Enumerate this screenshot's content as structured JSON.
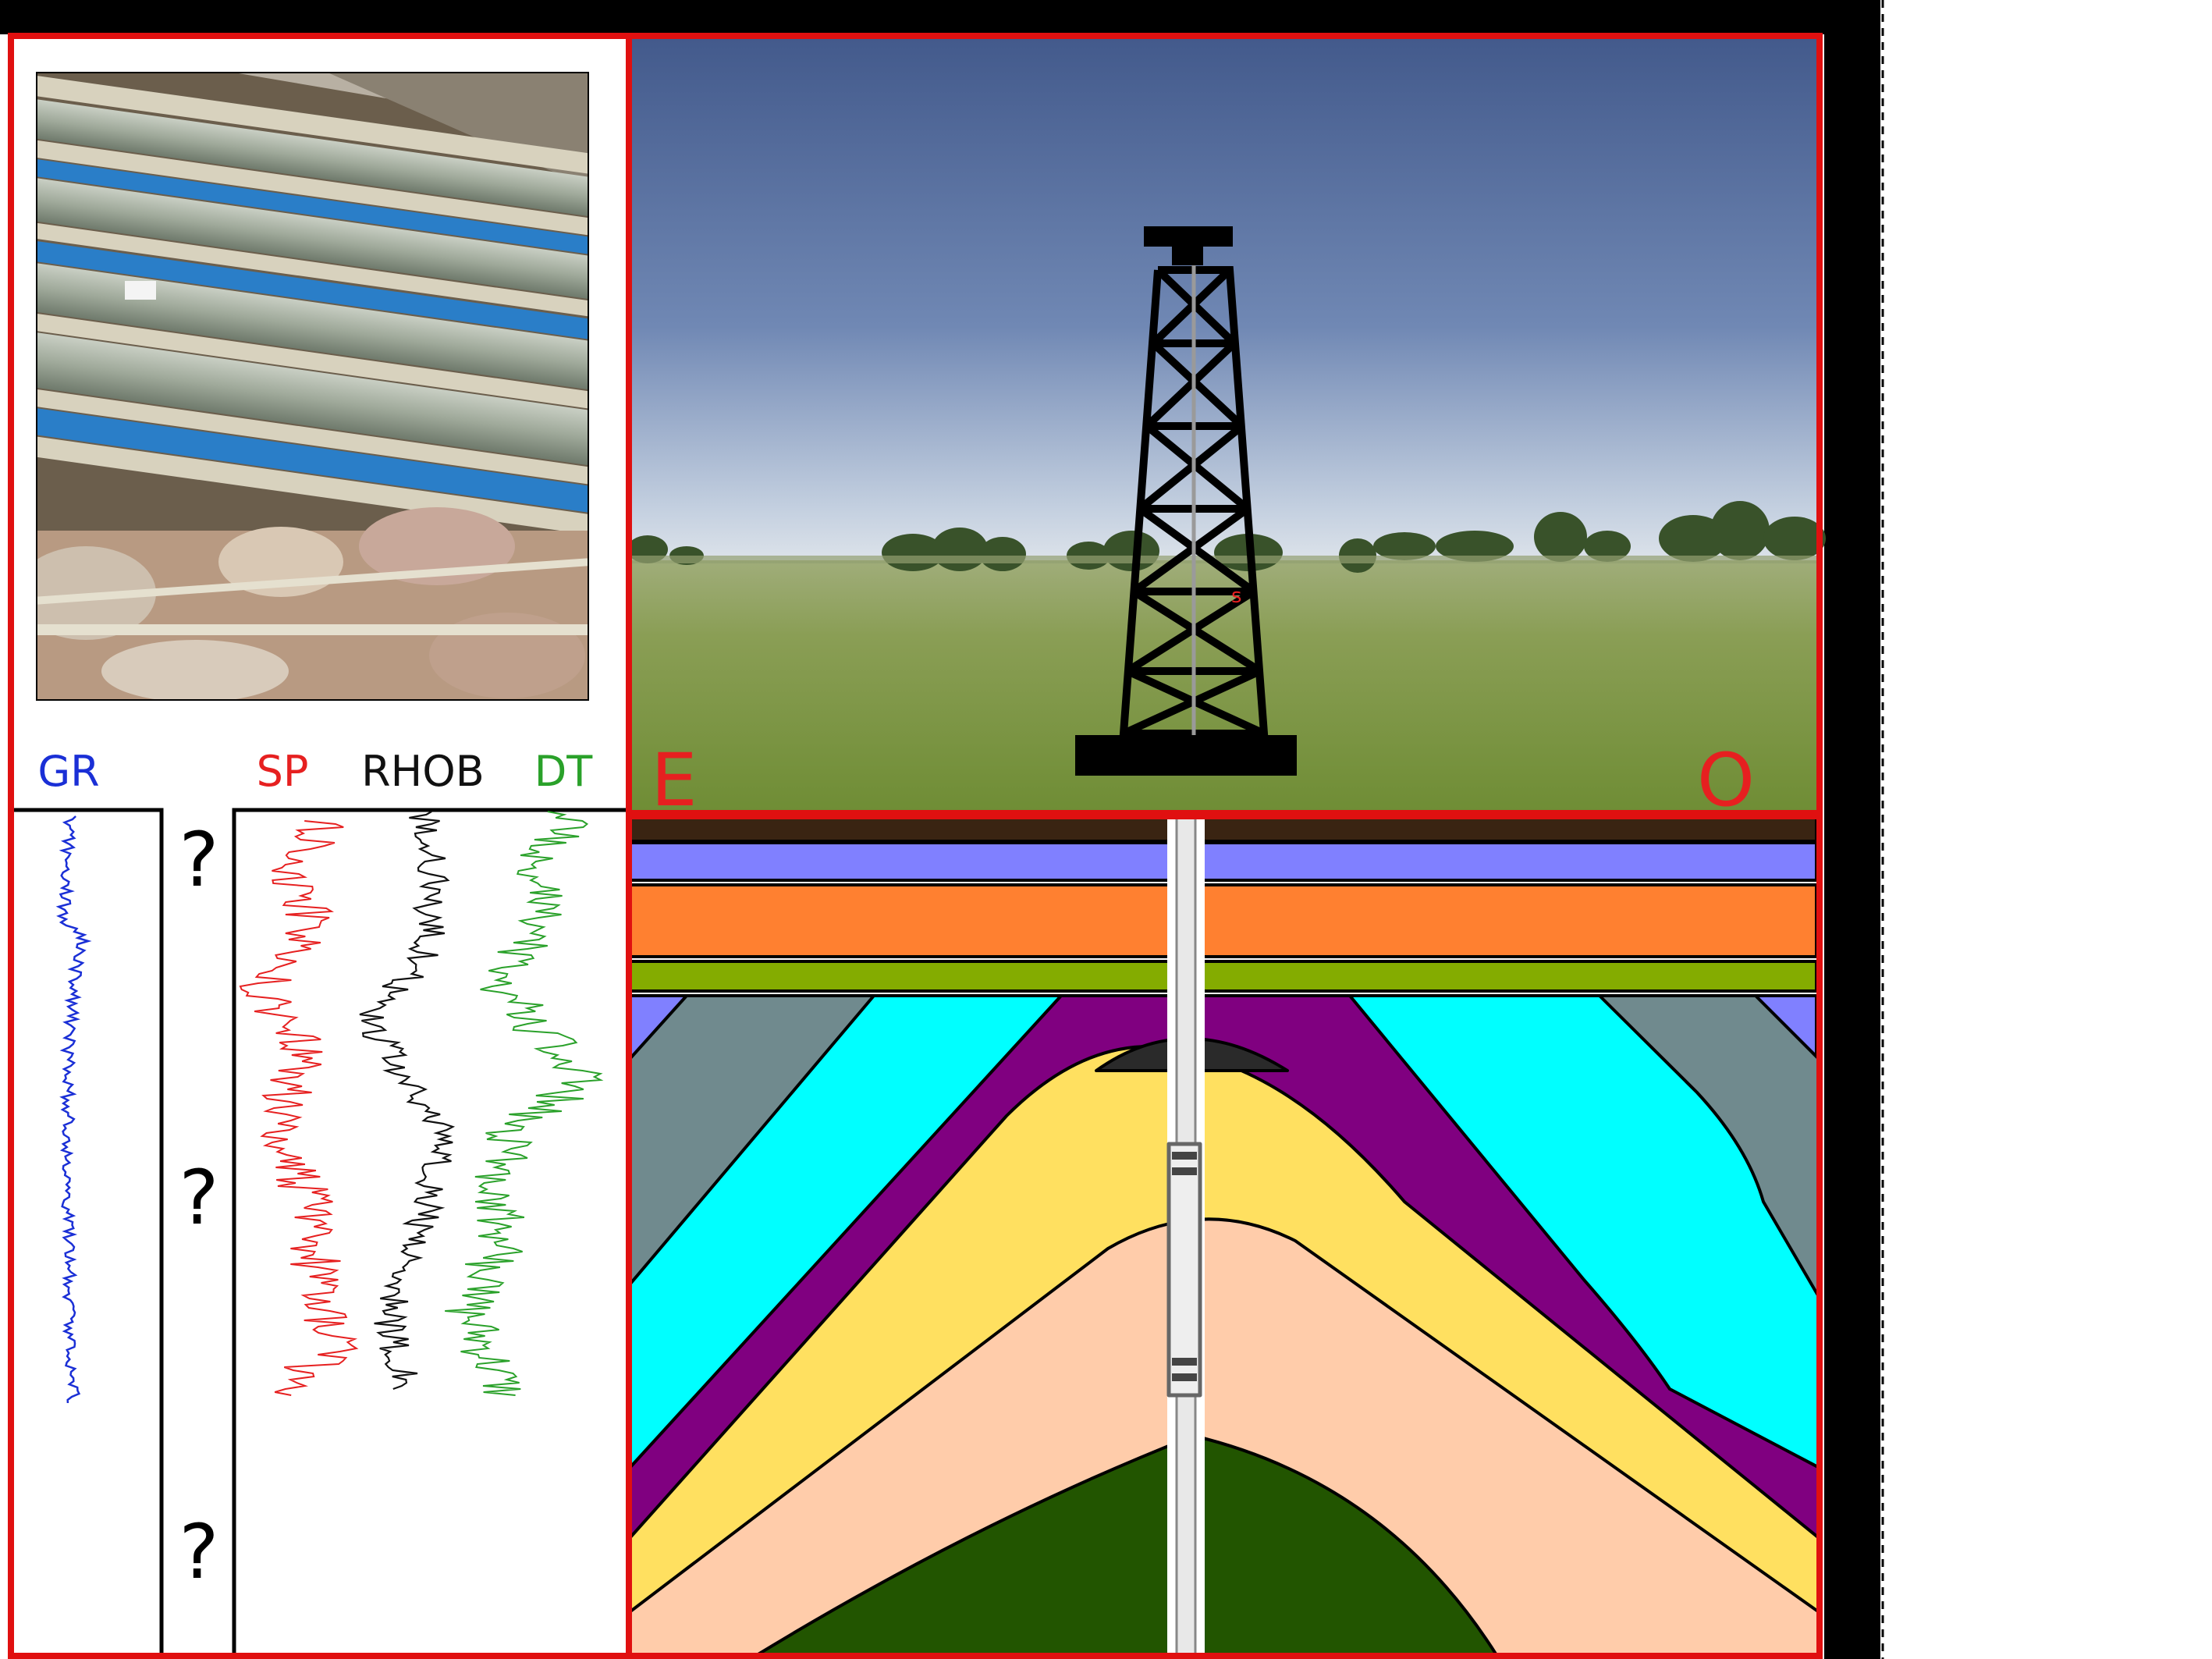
{
  "logs": {
    "gr_label": "GR",
    "sp_label": "SP",
    "rhob_label": "RHOB",
    "dt_label": "DT",
    "unknown_marks": [
      "?",
      "?",
      "?"
    ]
  },
  "cross_section": {
    "left_direction": "E",
    "right_direction": "O",
    "derrick_marker": "s"
  },
  "colors": {
    "frame": "#e01010",
    "gr_curve": "#1a2fd6",
    "sp_curve": "#e62020",
    "rhob_curve": "#111111",
    "dt_curve": "#2aa12a",
    "layer_topsoil": "#3a2412",
    "layer_lavender": "#8080ff",
    "layer_orange": "#ff8030",
    "layer_olive": "#84ac00",
    "layer_grey": "#708a8e",
    "layer_cyan": "#00ffff",
    "layer_purple": "#800080",
    "layer_yellow": "#ffe060",
    "layer_peach": "#ffccaa",
    "layer_green": "#225500",
    "hydrocarbon_cap": "#2a2a2a"
  }
}
